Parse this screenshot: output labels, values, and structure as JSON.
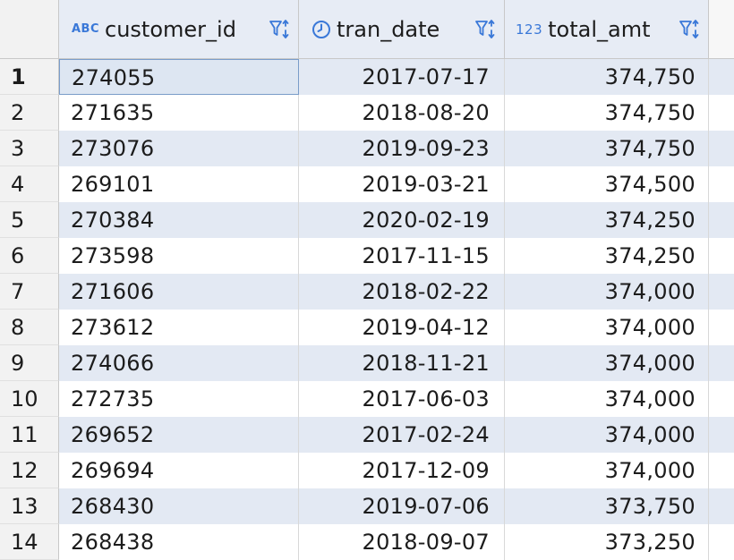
{
  "columns": [
    {
      "type_badge": "ABC",
      "name": "customer_id"
    },
    {
      "type_badge": "◷",
      "name": "tran_date"
    },
    {
      "type_badge": "123",
      "name": "total_amt"
    }
  ],
  "rows": [
    {
      "num": "1",
      "customer_id": "274055",
      "tran_date": "2017-07-17",
      "total_amt": "374,750"
    },
    {
      "num": "2",
      "customer_id": "271635",
      "tran_date": "2018-08-20",
      "total_amt": "374,750"
    },
    {
      "num": "3",
      "customer_id": "273076",
      "tran_date": "2019-09-23",
      "total_amt": "374,750"
    },
    {
      "num": "4",
      "customer_id": "269101",
      "tran_date": "2019-03-21",
      "total_amt": "374,500"
    },
    {
      "num": "5",
      "customer_id": "270384",
      "tran_date": "2020-02-19",
      "total_amt": "374,250"
    },
    {
      "num": "6",
      "customer_id": "273598",
      "tran_date": "2017-11-15",
      "total_amt": "374,250"
    },
    {
      "num": "7",
      "customer_id": "271606",
      "tran_date": "2018-02-22",
      "total_amt": "374,000"
    },
    {
      "num": "8",
      "customer_id": "273612",
      "tran_date": "2019-04-12",
      "total_amt": "374,000"
    },
    {
      "num": "9",
      "customer_id": "274066",
      "tran_date": "2018-11-21",
      "total_amt": "374,000"
    },
    {
      "num": "10",
      "customer_id": "272735",
      "tran_date": "2017-06-03",
      "total_amt": "374,000"
    },
    {
      "num": "11",
      "customer_id": "269652",
      "tran_date": "2017-02-24",
      "total_amt": "374,000"
    },
    {
      "num": "12",
      "customer_id": "269694",
      "tran_date": "2017-12-09",
      "total_amt": "374,000"
    },
    {
      "num": "13",
      "customer_id": "268430",
      "tran_date": "2019-07-06",
      "total_amt": "373,750"
    },
    {
      "num": "14",
      "customer_id": "268438",
      "tran_date": "2018-09-07",
      "total_amt": "373,250"
    }
  ],
  "colors": {
    "header_bg": "#e7ecf5",
    "alt_row_bg": "#e3e9f3",
    "badge_color": "#3a78d8",
    "selection_border": "#7a9cc9"
  },
  "selected_row": "1"
}
